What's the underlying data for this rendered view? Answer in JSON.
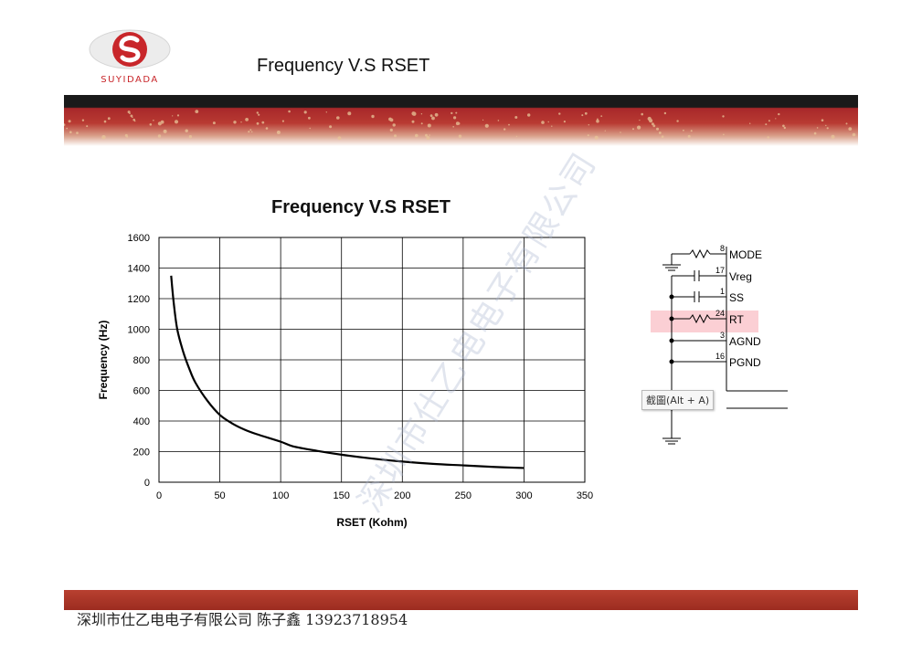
{
  "header": {
    "title": "Frequency V.S RSET",
    "logo_text": "SUYIDADA"
  },
  "colors": {
    "brand_red": "#c8262a",
    "band_dark": "#1a1a1a",
    "band_red": "#b32b2b",
    "curve": "#000000"
  },
  "chart_data": {
    "type": "line",
    "title": "Frequency V.S RSET",
    "xlabel": "RSET (Kohm)",
    "ylabel": "Frequency (Hz)",
    "xlim": [
      0,
      350
    ],
    "ylim": [
      0,
      1600
    ],
    "xticks": [
      0,
      50,
      100,
      150,
      200,
      250,
      300,
      350
    ],
    "yticks": [
      0,
      200,
      400,
      600,
      800,
      1000,
      1200,
      1400,
      1600
    ],
    "grid": true,
    "series": [
      {
        "x": [
          10,
          12,
          15,
          20,
          25,
          30,
          40,
          50,
          60,
          70,
          80,
          100,
          110,
          130,
          150,
          175,
          200,
          225,
          250,
          275,
          300
        ],
        "values": [
          1350,
          1180,
          1000,
          850,
          740,
          650,
          530,
          440,
          385,
          345,
          315,
          265,
          235,
          205,
          180,
          155,
          135,
          120,
          110,
          100,
          93
        ]
      }
    ]
  },
  "schematic": {
    "pins": [
      {
        "number": "8",
        "label": "MODE"
      },
      {
        "number": "17",
        "label": "Vreg"
      },
      {
        "number": "1",
        "label": "SS"
      },
      {
        "number": "24",
        "label": "RT"
      },
      {
        "number": "3",
        "label": "AGND"
      },
      {
        "number": "16",
        "label": "PGND"
      }
    ]
  },
  "tooltip": "截圖(Alt + A)",
  "watermark": "深圳市仕乙电电子有限公司",
  "footer": "深圳市仕乙电电子有限公司 陈子鑫 13923718954"
}
